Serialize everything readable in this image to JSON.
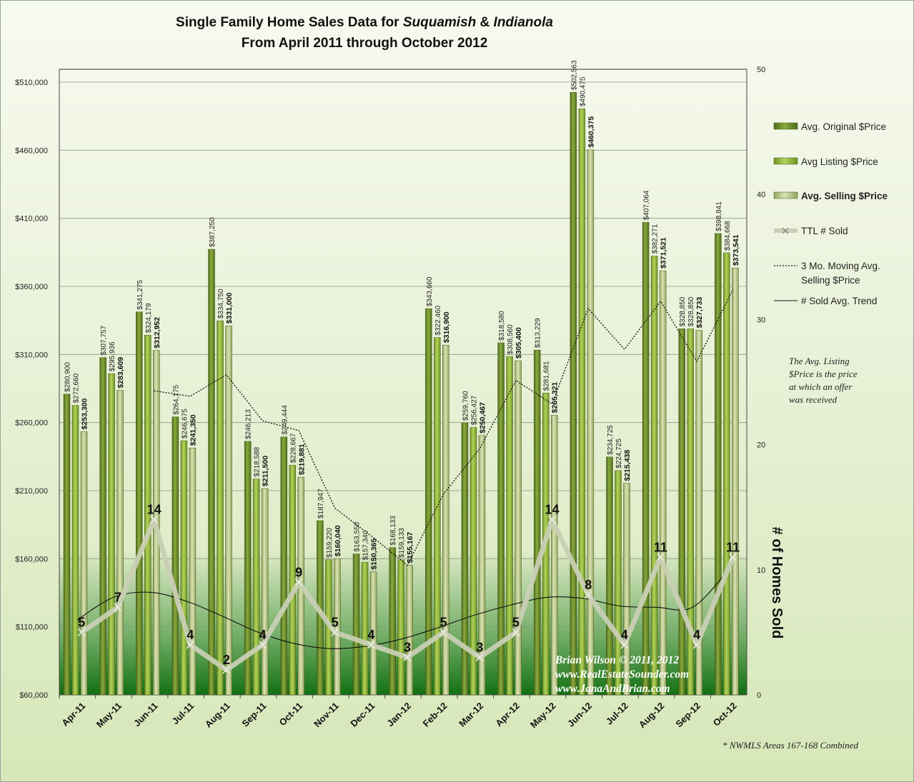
{
  "title_line1": {
    "plain": "Single Family Home Sales Data for ",
    "italic1": "Suquamish",
    "amp": " & ",
    "italic2": "Indianola"
  },
  "title_line2": "From April 2011 through October 2012",
  "right_axis_title": "# of Homes Sold",
  "note_lines": [
    "The Avg. Listing",
    "$Price is the price",
    "at which an offer",
    "was received"
  ],
  "credit_lines": [
    "Brian Wilson  © 2011, 2012",
    "www.RealEstateSounder.com",
    "www.JanaAndBrian.com"
  ],
  "footnote": "* NWMLS Areas 167-168 Combined",
  "colors": {
    "original": "#6e8f2c",
    "listing": "#94b83c",
    "selling": "#c2d08e",
    "sold_line": "#dde2cc",
    "band_dark": "#1b7a1b"
  },
  "chart_data": {
    "type": "bar",
    "categories": [
      "Apr-11",
      "May-11",
      "Jun-11",
      "Jul-11",
      "Aug-11",
      "Sep-11",
      "Oct-11",
      "Nov-11",
      "Dec-11",
      "Jan-12",
      "Feb-12",
      "Mar-12",
      "Apr-12",
      "May-12",
      "Jun-12",
      "Jul-12",
      "Aug-12",
      "Sep-12",
      "Oct-12"
    ],
    "y_left": {
      "min": 60000,
      "max": 510000,
      "ticks": [
        "$60,000",
        "$110,000",
        "$160,000",
        "$210,000",
        "$260,000",
        "$310,000",
        "$360,000",
        "$410,000",
        "$460,000",
        "$510,000"
      ],
      "tick_values": [
        60000,
        110000,
        160000,
        210000,
        260000,
        310000,
        360000,
        410000,
        460000,
        510000
      ]
    },
    "y_right": {
      "min": 0,
      "max": 50,
      "ticks": [
        "0",
        "10",
        "20",
        "30",
        "40",
        "50"
      ],
      "tick_values": [
        0,
        10,
        20,
        30,
        40,
        50
      ]
    },
    "series": [
      {
        "name": "Avg. Original $Price",
        "values": [
          280900,
          307757,
          341275,
          264175,
          387250,
          246213,
          249444,
          187947,
          163550,
          168133,
          343660,
          259760,
          318580,
          313229,
          502563,
          234725,
          407064,
          328850,
          398841
        ],
        "labels": [
          "$280,900",
          "$307,757",
          "$341,275",
          "$264,175",
          "$387,250",
          "$246,213",
          "$249,444",
          "$187,947",
          "$163,550",
          "$168,133",
          "$343,660",
          "$259,760",
          "$318,580",
          "$313,229",
          "$502,563",
          "$234,725",
          "$407,064",
          "$328,850",
          "$398,841"
        ]
      },
      {
        "name": "Avg Listing $Price",
        "values": [
          272660,
          295936,
          324179,
          246675,
          334750,
          218588,
          228667,
          159220,
          157340,
          159133,
          322460,
          256427,
          308560,
          281681,
          490475,
          224725,
          382271,
          328850,
          384668
        ],
        "labels": [
          "$272,660",
          "$295,936",
          "$324,179",
          "$246,675",
          "$334,750",
          "$218,588",
          "$228,667",
          "$159,220",
          "$157,340",
          "$159,133",
          "$322,460",
          "$256,427",
          "$308,560",
          "$281,681",
          "$490,475",
          "$224,725",
          "$382,271",
          "$328,850",
          "$384,668"
        ]
      },
      {
        "name": "Avg. Selling $Price",
        "values": [
          253300,
          283609,
          312952,
          241350,
          331000,
          211500,
          219881,
          160040,
          150365,
          155167,
          316900,
          250467,
          305400,
          265321,
          460375,
          215438,
          371521,
          327733,
          373541
        ],
        "labels": [
          "$253,300",
          "$283,609",
          "$312,952",
          "$241,350",
          "$331,000",
          "$211,500",
          "$219,881",
          "$160,040",
          "$150,365",
          "$155,167",
          "$316,900",
          "$250,467",
          "$305,400",
          "$265,321",
          "$460,375",
          "$215,438",
          "$371,521",
          "$327,733",
          "$373,541"
        ]
      },
      {
        "name": "TTL # Sold",
        "axis": "right",
        "values": [
          5,
          7,
          14,
          4,
          2,
          4,
          9,
          5,
          4,
          3,
          5,
          3,
          5,
          14,
          8,
          4,
          11,
          4,
          11
        ],
        "labels": [
          "5",
          "7",
          "14",
          "4",
          "2",
          "4",
          "9",
          "5",
          "4",
          "3",
          "5",
          "3",
          "5",
          "14",
          "8",
          "4",
          "11",
          "4",
          "11"
        ]
      },
      {
        "name": "3 Mo. Moving Avg. Selling $Price",
        "values": [
          null,
          null,
          283287,
          279304,
          295101,
          261283,
          254127,
          197140,
          176762,
          155191,
          207477,
          240845,
          290922,
          273729,
          343699,
          313711,
          349111,
          304897,
          357598
        ]
      },
      {
        "name": "# Sold Avg. Trend",
        "axis": "right",
        "values": [
          6.0,
          7.8,
          8.2,
          7.5,
          6.3,
          5.0,
          4.1,
          3.7,
          3.9,
          4.5,
          5.4,
          6.4,
          7.2,
          7.8,
          7.7,
          7.1,
          7.0,
          7.0,
          10.0
        ]
      }
    ],
    "legend": [
      "Avg. Original $Price",
      "Avg Listing $Price",
      "Avg. Selling $Price",
      "TTL # Sold",
      "3 Mo. Moving Avg. Selling $Price",
      "# Sold Avg. Trend"
    ],
    "legend_position": "right",
    "grid": true
  }
}
